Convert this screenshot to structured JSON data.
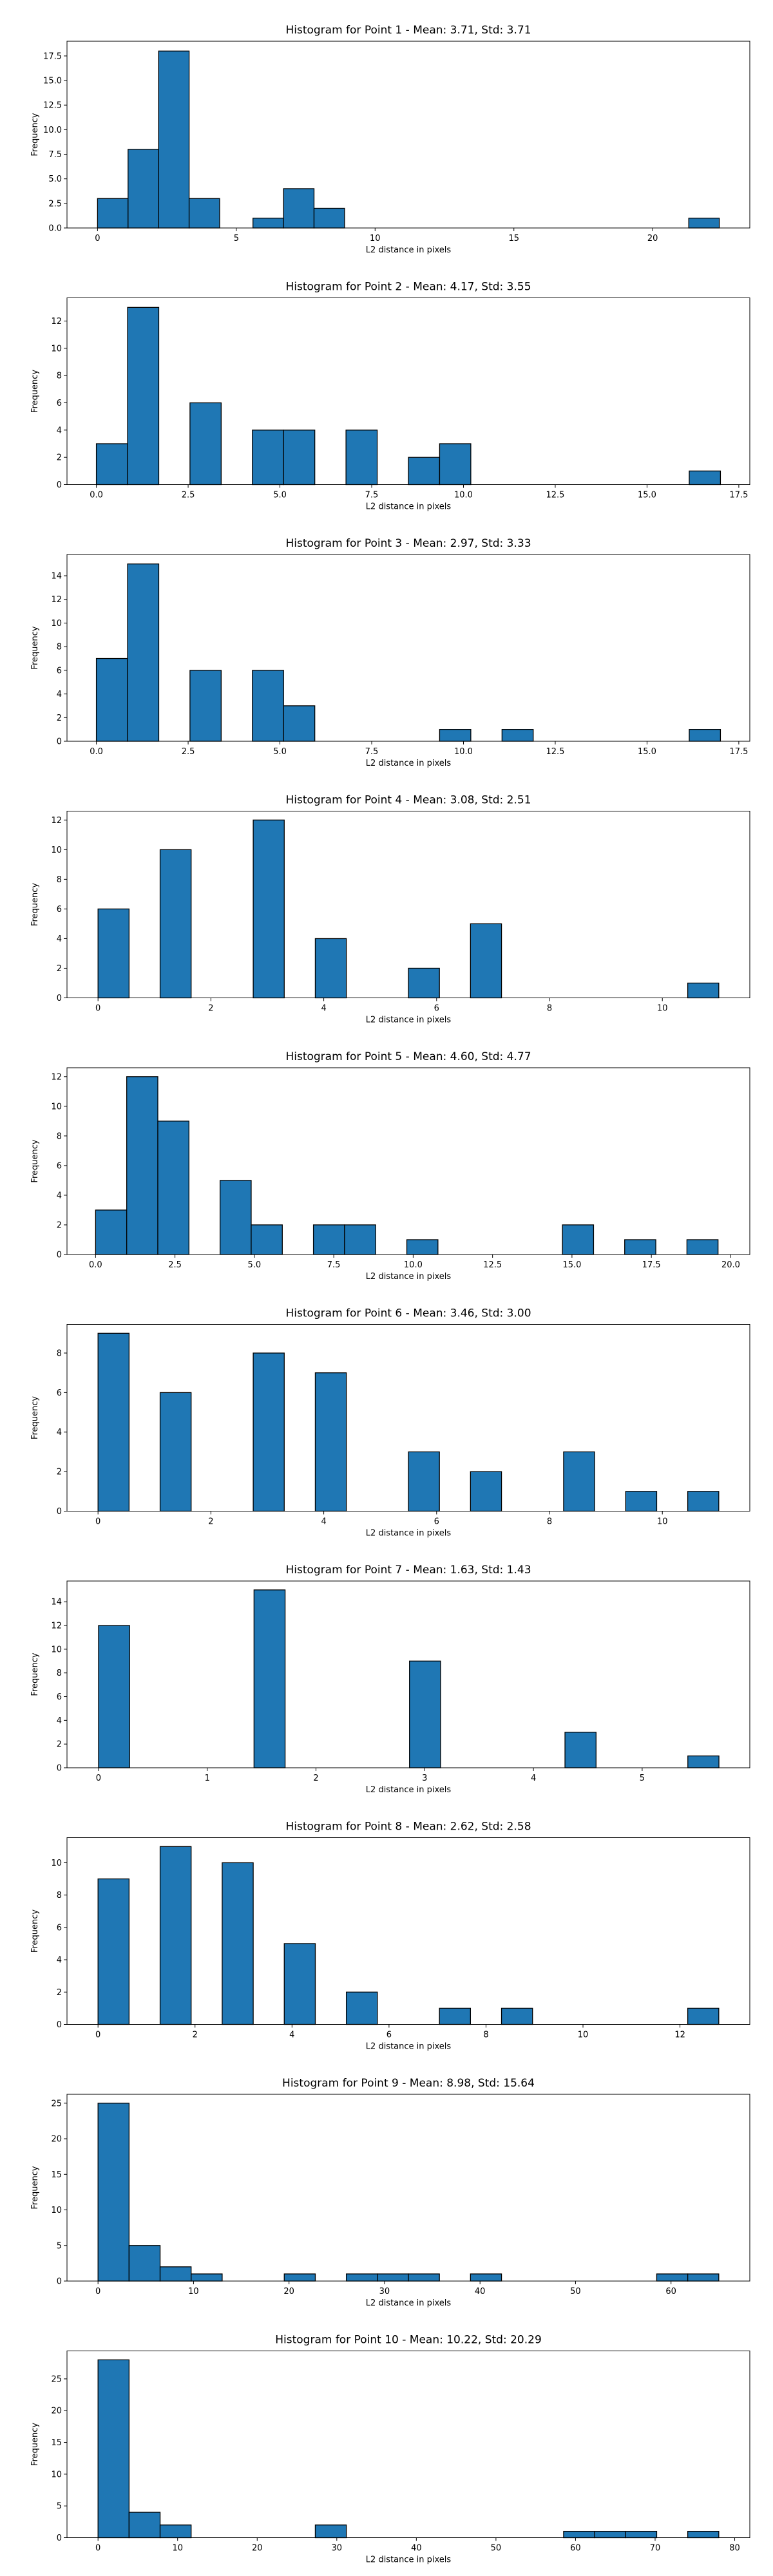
{
  "chart_data": [
    {
      "type": "bar",
      "title": "Histogram for Point 1 - Mean: 3.71, Std: 3.71",
      "xlabel": "L2 distance in pixels",
      "ylabel": "Frequency",
      "xlim": [
        -1.1,
        23.5
      ],
      "ylim": [
        0,
        19
      ],
      "bin_width": 1.1,
      "color": "#1f77b4",
      "xticks": [
        0,
        5,
        10,
        15,
        20
      ],
      "xtick_labels": [
        "0",
        "5",
        "10",
        "15",
        "20"
      ],
      "yticks": [
        0,
        2.5,
        5,
        7.5,
        10,
        12.5,
        15,
        17.5
      ],
      "ytick_labels": [
        "0.0",
        "2.5",
        "5.0",
        "7.5",
        "10.0",
        "12.5",
        "15.0",
        "17.5"
      ],
      "bins": [
        {
          "x": 0,
          "count": 3
        },
        {
          "x": 1.1,
          "count": 8
        },
        {
          "x": 2.2,
          "count": 18
        },
        {
          "x": 3.3,
          "count": 3
        },
        {
          "x": 5.6,
          "count": 1
        },
        {
          "x": 6.7,
          "count": 4
        },
        {
          "x": 7.8,
          "count": 2
        },
        {
          "x": 21.3,
          "count": 1
        }
      ]
    },
    {
      "type": "bar",
      "title": "Histogram for Point 2 - Mean: 4.17, Std: 3.55",
      "xlabel": "L2 distance in pixels",
      "ylabel": "Frequency",
      "xlim": [
        -0.8,
        17.8
      ],
      "ylim": [
        0,
        13.7
      ],
      "bin_width": 0.85,
      "color": "#1f77b4",
      "xticks": [
        0,
        2.5,
        5,
        7.5,
        10,
        12.5,
        15,
        17.5
      ],
      "xtick_labels": [
        "0.0",
        "2.5",
        "5.0",
        "7.5",
        "10.0",
        "12.5",
        "15.0",
        "17.5"
      ],
      "yticks": [
        0,
        2,
        4,
        6,
        8,
        10,
        12
      ],
      "ytick_labels": [
        "0",
        "2",
        "4",
        "6",
        "8",
        "10",
        "12"
      ],
      "bins": [
        {
          "x": 0,
          "count": 3
        },
        {
          "x": 0.85,
          "count": 13
        },
        {
          "x": 2.55,
          "count": 6
        },
        {
          "x": 4.25,
          "count": 4
        },
        {
          "x": 5.1,
          "count": 4
        },
        {
          "x": 6.8,
          "count": 4
        },
        {
          "x": 8.5,
          "count": 2
        },
        {
          "x": 9.35,
          "count": 3
        },
        {
          "x": 16.15,
          "count": 1
        }
      ]
    },
    {
      "type": "bar",
      "title": "Histogram for Point 3 - Mean: 2.97, Std: 3.33",
      "xlabel": "L2 distance in pixels",
      "ylabel": "Frequency",
      "xlim": [
        -0.8,
        17.8
      ],
      "ylim": [
        0,
        15.8
      ],
      "bin_width": 0.85,
      "color": "#1f77b4",
      "xticks": [
        0,
        2.5,
        5,
        7.5,
        10,
        12.5,
        15,
        17.5
      ],
      "xtick_labels": [
        "0.0",
        "2.5",
        "5.0",
        "7.5",
        "10.0",
        "12.5",
        "15.0",
        "17.5"
      ],
      "yticks": [
        0,
        2,
        4,
        6,
        8,
        10,
        12,
        14
      ],
      "ytick_labels": [
        "0",
        "2",
        "4",
        "6",
        "8",
        "10",
        "12",
        "14"
      ],
      "bins": [
        {
          "x": 0,
          "count": 7
        },
        {
          "x": 0.85,
          "count": 15
        },
        {
          "x": 2.55,
          "count": 6
        },
        {
          "x": 4.25,
          "count": 6
        },
        {
          "x": 5.1,
          "count": 3
        },
        {
          "x": 9.35,
          "count": 1
        },
        {
          "x": 11.05,
          "count": 1
        },
        {
          "x": 16.15,
          "count": 1
        }
      ]
    },
    {
      "type": "bar",
      "title": "Histogram for Point 4 - Mean: 3.08, Std: 2.51",
      "xlabel": "L2 distance in pixels",
      "ylabel": "Frequency",
      "xlim": [
        -0.55,
        11.55
      ],
      "ylim": [
        0,
        12.6
      ],
      "bin_width": 0.55,
      "color": "#1f77b4",
      "xticks": [
        0,
        2,
        4,
        6,
        8,
        10
      ],
      "xtick_labels": [
        "0",
        "2",
        "4",
        "6",
        "8",
        "10"
      ],
      "yticks": [
        0,
        2,
        4,
        6,
        8,
        10,
        12
      ],
      "ytick_labels": [
        "0",
        "2",
        "4",
        "6",
        "8",
        "10",
        "12"
      ],
      "bins": [
        {
          "x": 0,
          "count": 6
        },
        {
          "x": 1.1,
          "count": 10
        },
        {
          "x": 2.75,
          "count": 12
        },
        {
          "x": 3.85,
          "count": 4
        },
        {
          "x": 5.5,
          "count": 2
        },
        {
          "x": 6.6,
          "count": 5
        },
        {
          "x": 10.45,
          "count": 1
        }
      ]
    },
    {
      "type": "bar",
      "title": "Histogram for Point 5 - Mean: 4.60, Std: 4.77",
      "xlabel": "L2 distance in pixels",
      "ylabel": "Frequency",
      "xlim": [
        -0.9,
        20.6
      ],
      "ylim": [
        0,
        12.6
      ],
      "bin_width": 0.98,
      "color": "#1f77b4",
      "xticks": [
        0,
        2.5,
        5,
        7.5,
        10,
        12.5,
        15,
        17.5,
        20
      ],
      "xtick_labels": [
        "0.0",
        "2.5",
        "5.0",
        "7.5",
        "10.0",
        "12.5",
        "15.0",
        "17.5",
        "20.0"
      ],
      "yticks": [
        0,
        2,
        4,
        6,
        8,
        10,
        12
      ],
      "ytick_labels": [
        "0",
        "2",
        "4",
        "6",
        "8",
        "10",
        "12"
      ],
      "bins": [
        {
          "x": 0,
          "count": 3
        },
        {
          "x": 0.98,
          "count": 12
        },
        {
          "x": 1.96,
          "count": 9
        },
        {
          "x": 3.92,
          "count": 5
        },
        {
          "x": 4.9,
          "count": 2
        },
        {
          "x": 6.86,
          "count": 2
        },
        {
          "x": 7.84,
          "count": 2
        },
        {
          "x": 9.8,
          "count": 1
        },
        {
          "x": 14.7,
          "count": 2
        },
        {
          "x": 16.66,
          "count": 1
        },
        {
          "x": 18.62,
          "count": 1
        }
      ]
    },
    {
      "type": "bar",
      "title": "Histogram for Point 6 - Mean: 3.46, Std: 3.00",
      "xlabel": "L2 distance in pixels",
      "ylabel": "Frequency",
      "xlim": [
        -0.55,
        11.55
      ],
      "ylim": [
        0,
        9.45
      ],
      "bin_width": 0.55,
      "color": "#1f77b4",
      "xticks": [
        0,
        2,
        4,
        6,
        8,
        10
      ],
      "xtick_labels": [
        "0",
        "2",
        "4",
        "6",
        "8",
        "10"
      ],
      "yticks": [
        0,
        2,
        4,
        6,
        8
      ],
      "ytick_labels": [
        "0",
        "2",
        "4",
        "6",
        "8"
      ],
      "bins": [
        {
          "x": 0,
          "count": 9
        },
        {
          "x": 1.1,
          "count": 6
        },
        {
          "x": 2.75,
          "count": 8
        },
        {
          "x": 3.85,
          "count": 7
        },
        {
          "x": 5.5,
          "count": 3
        },
        {
          "x": 6.6,
          "count": 2
        },
        {
          "x": 8.25,
          "count": 3
        },
        {
          "x": 9.35,
          "count": 1
        },
        {
          "x": 10.45,
          "count": 1
        }
      ]
    },
    {
      "type": "bar",
      "title": "Histogram for Point 7 - Mean: 1.63, Std: 1.43",
      "xlabel": "L2 distance in pixels",
      "ylabel": "Frequency",
      "xlim": [
        -0.29,
        5.99
      ],
      "ylim": [
        0,
        15.75
      ],
      "bin_width": 0.286,
      "color": "#1f77b4",
      "xticks": [
        0,
        1,
        2,
        3,
        4,
        5
      ],
      "xtick_labels": [
        "0",
        "1",
        "2",
        "3",
        "4",
        "5"
      ],
      "yticks": [
        0,
        2,
        4,
        6,
        8,
        10,
        12,
        14
      ],
      "ytick_labels": [
        "0",
        "2",
        "4",
        "6",
        "8",
        "10",
        "12",
        "14"
      ],
      "bins": [
        {
          "x": 0,
          "count": 12
        },
        {
          "x": 1.43,
          "count": 15
        },
        {
          "x": 2.86,
          "count": 9
        },
        {
          "x": 4.29,
          "count": 3
        },
        {
          "x": 5.42,
          "count": 1
        }
      ]
    },
    {
      "type": "bar",
      "title": "Histogram for Point 8 - Mean: 2.62, Std: 2.58",
      "xlabel": "L2 distance in pixels",
      "ylabel": "Frequency",
      "xlim": [
        -0.64,
        13.44
      ],
      "ylim": [
        0,
        11.55
      ],
      "bin_width": 0.64,
      "color": "#1f77b4",
      "xticks": [
        0,
        2,
        4,
        6,
        8,
        10,
        12
      ],
      "xtick_labels": [
        "0",
        "2",
        "4",
        "6",
        "8",
        "10",
        "12"
      ],
      "yticks": [
        0,
        2,
        4,
        6,
        8,
        10
      ],
      "ytick_labels": [
        "0",
        "2",
        "4",
        "6",
        "8",
        "10"
      ],
      "bins": [
        {
          "x": 0,
          "count": 9
        },
        {
          "x": 1.28,
          "count": 11
        },
        {
          "x": 2.56,
          "count": 10
        },
        {
          "x": 3.84,
          "count": 5
        },
        {
          "x": 5.12,
          "count": 2
        },
        {
          "x": 7.04,
          "count": 1
        },
        {
          "x": 8.32,
          "count": 1
        },
        {
          "x": 12.16,
          "count": 1
        }
      ]
    },
    {
      "type": "bar",
      "title": "Histogram for Point 9 - Mean: 8.98, Std: 15.64",
      "xlabel": "L2 distance in pixels",
      "ylabel": "Frequency",
      "xlim": [
        -3.25,
        68.25
      ],
      "ylim": [
        0,
        26.25
      ],
      "bin_width": 3.25,
      "color": "#1f77b4",
      "xticks": [
        0,
        10,
        20,
        30,
        40,
        50,
        60
      ],
      "xtick_labels": [
        "0",
        "10",
        "20",
        "30",
        "40",
        "50",
        "60"
      ],
      "yticks": [
        0,
        5,
        10,
        15,
        20,
        25
      ],
      "ytick_labels": [
        "0",
        "5",
        "10",
        "15",
        "20",
        "25"
      ],
      "bins": [
        {
          "x": 0,
          "count": 25
        },
        {
          "x": 3.25,
          "count": 5
        },
        {
          "x": 6.5,
          "count": 2
        },
        {
          "x": 9.75,
          "count": 1
        },
        {
          "x": 19.5,
          "count": 1
        },
        {
          "x": 26,
          "count": 1
        },
        {
          "x": 29.25,
          "count": 1
        },
        {
          "x": 32.5,
          "count": 1
        },
        {
          "x": 39,
          "count": 1
        },
        {
          "x": 58.5,
          "count": 1
        },
        {
          "x": 61.75,
          "count": 1
        }
      ]
    },
    {
      "type": "bar",
      "title": "Histogram for Point 10 - Mean: 10.22, Std: 20.29",
      "xlabel": "L2 distance in pixels",
      "ylabel": "Frequency",
      "xlim": [
        -3.9,
        81.9
      ],
      "ylim": [
        0,
        29.4
      ],
      "bin_width": 3.9,
      "color": "#1f77b4",
      "xticks": [
        0,
        10,
        20,
        30,
        40,
        50,
        60,
        70,
        80
      ],
      "xtick_labels": [
        "0",
        "10",
        "20",
        "30",
        "40",
        "50",
        "60",
        "70",
        "80"
      ],
      "yticks": [
        0,
        5,
        10,
        15,
        20,
        25
      ],
      "ytick_labels": [
        "0",
        "5",
        "10",
        "15",
        "20",
        "25"
      ],
      "bins": [
        {
          "x": 0,
          "count": 28
        },
        {
          "x": 3.9,
          "count": 4
        },
        {
          "x": 7.8,
          "count": 2
        },
        {
          "x": 27.3,
          "count": 2
        },
        {
          "x": 58.5,
          "count": 1
        },
        {
          "x": 62.4,
          "count": 1
        },
        {
          "x": 66.3,
          "count": 1
        },
        {
          "x": 74.1,
          "count": 1
        }
      ]
    }
  ]
}
